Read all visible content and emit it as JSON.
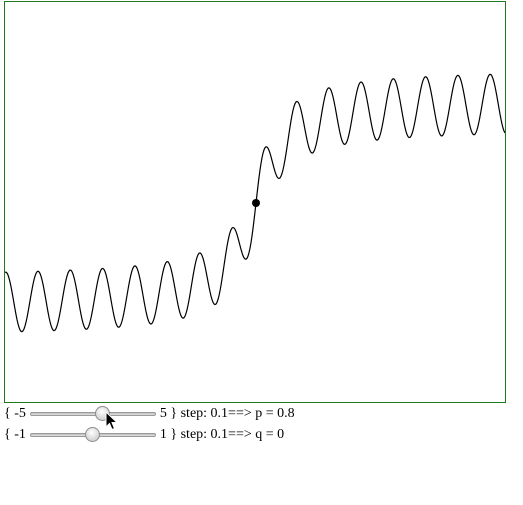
{
  "plot": {
    "frame_color": "#1f7a1f",
    "curve_color": "#000000",
    "point_color": "#000000"
  },
  "sliders": [
    {
      "id": "p",
      "open": "{ -5",
      "min": -5,
      "max": 5,
      "value": 0.8,
      "close": "5 } step: 0.1==> p = 0.8"
    },
    {
      "id": "q",
      "open": "{ -1",
      "min": -1,
      "max": 1,
      "value": 0,
      "close": "1 } step: 0.1==> q = 0"
    }
  ],
  "cursor_icon": "arrow-pointer"
}
